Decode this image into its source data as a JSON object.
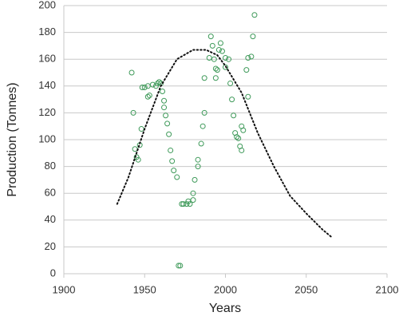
{
  "chart_data": {
    "type": "scatter",
    "xlabel": "Years",
    "ylabel": "Production (Tonnes)",
    "xlim": [
      1900,
      2100
    ],
    "xticks": [
      1900,
      1950,
      2000,
      2050,
      2100
    ],
    "ylim": [
      0,
      200
    ],
    "yticks": [
      0,
      20,
      40,
      60,
      80,
      100,
      120,
      140,
      160,
      180,
      200
    ],
    "grid": true,
    "series": [
      {
        "type": "scatter",
        "color": "#3f9a5a",
        "x": [
          1942,
          1943,
          1944,
          1945,
          1946,
          1947,
          1948,
          1948.5,
          1950,
          1952,
          1952,
          1953,
          1955,
          1957,
          1958,
          1959,
          1960,
          1961,
          1962,
          1962,
          1963,
          1964,
          1965,
          1966,
          1967,
          1968,
          1970,
          1971,
          1972,
          1973,
          1974,
          1976,
          1977,
          1978,
          1980,
          1980,
          1981,
          1983,
          1983,
          1985,
          1986,
          1987,
          1987,
          1990,
          1991,
          1992,
          1993,
          1994,
          1994,
          1995,
          1996,
          1997,
          1998,
          2000,
          2000,
          2002,
          2003,
          2004,
          2005,
          2006,
          2007,
          2008,
          2009,
          2010,
          2010,
          2011,
          2013,
          2014,
          2014,
          2016,
          2017,
          2018
        ],
        "values": [
          150,
          120,
          93,
          87,
          85,
          96,
          108,
          139,
          139,
          140,
          132,
          133,
          141,
          140,
          142,
          143,
          142,
          136,
          129,
          124,
          118,
          112,
          104,
          92,
          84,
          77,
          72,
          6,
          6,
          52,
          52,
          52,
          54,
          52,
          55,
          60,
          70,
          80,
          85,
          97,
          110,
          120,
          146,
          161,
          177,
          170,
          160,
          146,
          153,
          152,
          167,
          172,
          166,
          161,
          154,
          160,
          142,
          130,
          118,
          105,
          102,
          101,
          95,
          92,
          110,
          107,
          152,
          132,
          161,
          162,
          177,
          193
        ]
      },
      {
        "type": "line",
        "style": "dotted",
        "color": "#111111",
        "x": [
          1933,
          1940,
          1950,
          1960,
          1970,
          1980,
          1988,
          1995,
          2000,
          2010,
          2020,
          2030,
          2040,
          2050,
          2060,
          2066
        ],
        "values": [
          52,
          72,
          108,
          140,
          160,
          167,
          167,
          163,
          155,
          135,
          105,
          80,
          58,
          45,
          33,
          27
        ]
      }
    ]
  }
}
